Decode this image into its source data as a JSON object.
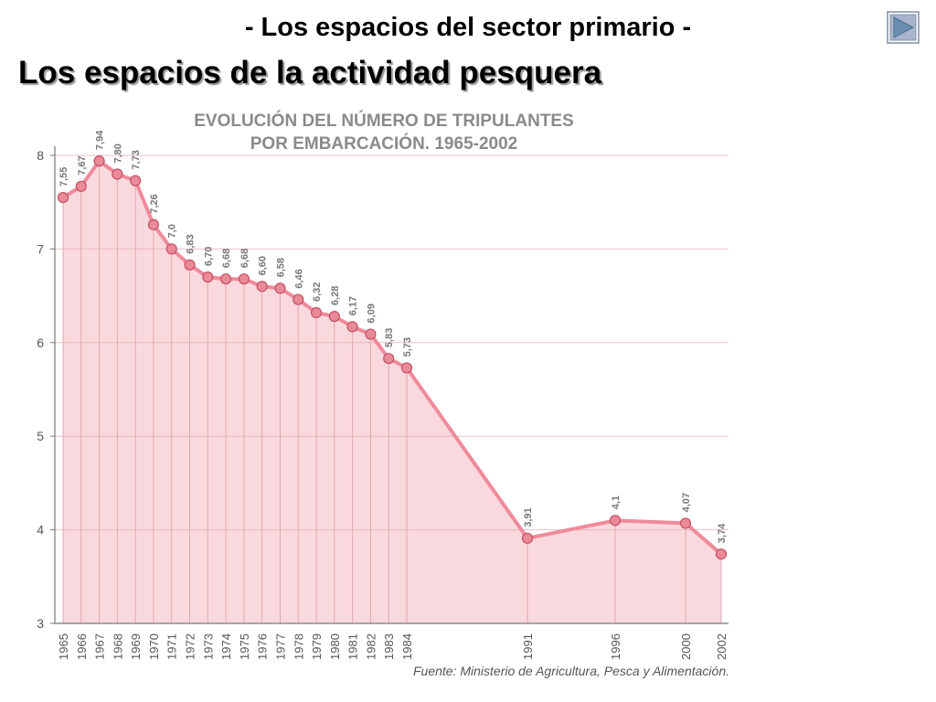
{
  "slide": {
    "subtitle": "- Los espacios del sector primario -",
    "title": "Los espacios de la actividad pesquera",
    "nav_icon": "next-arrow-icon"
  },
  "colors": {
    "line": "#f08a9a",
    "fill": "#f9d9dd",
    "marker": "#e98a98",
    "marker_stroke": "#c44f63",
    "grid": "#e0a8b0",
    "title_text": "#8a8a8a"
  },
  "chart_data": {
    "type": "line",
    "title": "EVOLUCIÓN DEL NÚMERO DE TRIPULANTES",
    "subtitle": "POR EMBARCACIÓN. 1965-2002",
    "source": "Fuente: Ministerio de Agricultura, Pesca y Alimentación.",
    "xlabel": "",
    "ylabel": "",
    "ylim": [
      3,
      8
    ],
    "yticks": [
      3,
      4,
      5,
      6,
      7,
      8
    ],
    "grid": true,
    "area_fill": true,
    "x": [
      1965,
      1966,
      1967,
      1968,
      1969,
      1970,
      1971,
      1972,
      1973,
      1974,
      1975,
      1976,
      1977,
      1978,
      1979,
      1980,
      1981,
      1982,
      1983,
      1984,
      1991,
      1996,
      2000,
      2002
    ],
    "values": [
      7.55,
      7.67,
      7.94,
      7.8,
      7.73,
      7.26,
      7.0,
      6.83,
      6.7,
      6.68,
      6.68,
      6.6,
      6.58,
      6.46,
      6.32,
      6.28,
      6.17,
      6.09,
      5.83,
      5.73,
      3.91,
      4.1,
      4.07,
      3.74
    ],
    "labels": [
      "7,55",
      "7,67",
      "7,94",
      "7,80",
      "7,73",
      "7,26",
      "7,0",
      "6,83",
      "6,70",
      "6,68",
      "6,68",
      "6,60",
      "6,58",
      "6,46",
      "6,32",
      "6,28",
      "6,17",
      "6,09",
      "5,83",
      "5,73",
      "3,91",
      "4,1",
      "4,07",
      "3,74"
    ]
  }
}
